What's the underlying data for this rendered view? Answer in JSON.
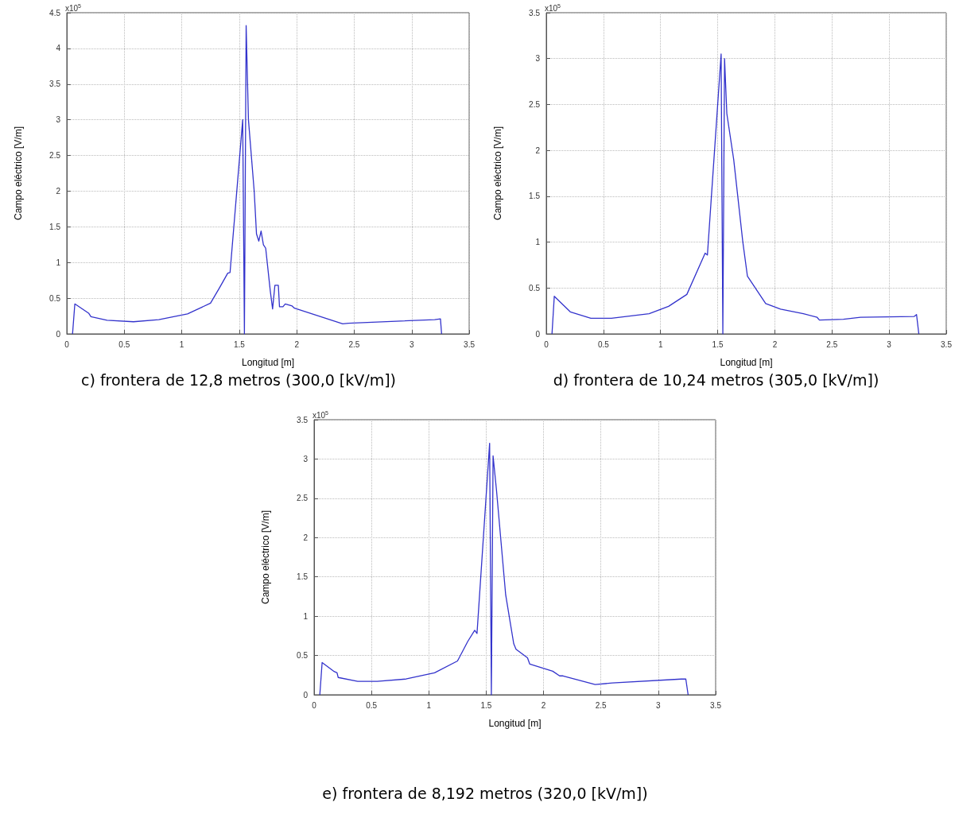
{
  "chart_data": [
    {
      "type": "line",
      "title": "c) frontera de 12,8 metros (300,0 [kV/m])",
      "xlabel": "Longitud [m]",
      "ylabel": "Campo eléctrico [V/m]",
      "annotations": [
        "x10$^{5}$"
      ],
      "grid": true,
      "marker": "none",
      "line_style": "solid",
      "xlim": [
        0,
        3.5
      ],
      "xticks": [
        0,
        0.5,
        1,
        1.5,
        2,
        2.5,
        3,
        3.5
      ],
      "ylim": [
        0,
        4.5
      ],
      "yticks": [
        0,
        0.5,
        1,
        1.5,
        2,
        2.5,
        3,
        3.5,
        4,
        4.5
      ],
      "series": [
        {
          "color": "#3333cc",
          "x": [
            0.05,
            0.07,
            0.19,
            0.21,
            0.35,
            0.58,
            0.8,
            1.05,
            1.25,
            1.33,
            1.4,
            1.42,
            1.53,
            1.545,
            1.56,
            1.58,
            1.63,
            1.65,
            1.67,
            1.69,
            1.71,
            1.73,
            1.77,
            1.79,
            1.81,
            1.84,
            1.85,
            1.88,
            1.9,
            1.96,
            1.98,
            2.4,
            2.45,
            3.2,
            3.25,
            3.26
          ],
          "values": [
            0,
            0.42,
            0.29,
            0.24,
            0.19,
            0.17,
            0.2,
            0.28,
            0.43,
            0.65,
            0.85,
            0.86,
            3.0,
            0,
            4.32,
            3.0,
            2.0,
            1.4,
            1.3,
            1.44,
            1.25,
            1.2,
            0.6,
            0.35,
            0.68,
            0.68,
            0.38,
            0.38,
            0.42,
            0.39,
            0.36,
            0.14,
            0.15,
            0.2,
            0.21,
            0
          ]
        }
      ]
    },
    {
      "type": "line",
      "title": "d) frontera de 10,24 metros (305,0 [kV/m])",
      "xlabel": "Longitud [m]",
      "ylabel": "Campo eléctrico [V/m]",
      "annotations": [
        "x10$^{5}$"
      ],
      "grid": true,
      "marker": "none",
      "line_style": "solid",
      "xlim": [
        0,
        3.5
      ],
      "xticks": [
        0,
        0.5,
        1,
        1.5,
        2,
        2.5,
        3,
        3.5
      ],
      "ylim": [
        0,
        3.5
      ],
      "yticks": [
        0,
        0.5,
        1,
        1.5,
        2,
        2.5,
        3,
        3.5
      ],
      "series": [
        {
          "color": "#3333cc",
          "x": [
            0.05,
            0.07,
            0.21,
            0.39,
            0.57,
            0.9,
            1.07,
            1.23,
            1.39,
            1.41,
            1.53,
            1.545,
            1.56,
            1.58,
            1.64,
            1.72,
            1.76,
            1.92,
            2.05,
            2.25,
            2.37,
            2.39,
            2.6,
            2.75,
            3.22,
            3.24,
            3.26
          ],
          "values": [
            0,
            0.41,
            0.24,
            0.17,
            0.17,
            0.22,
            0.3,
            0.43,
            0.88,
            0.86,
            3.05,
            0,
            3.0,
            2.4,
            1.9,
            1.0,
            0.63,
            0.33,
            0.27,
            0.22,
            0.18,
            0.15,
            0.16,
            0.18,
            0.19,
            0.21,
            0
          ]
        }
      ]
    },
    {
      "type": "line",
      "title": "e) frontera de 8,192 metros (320,0 [kV/m])",
      "xlabel": "Longitud [m]",
      "ylabel": "Campo eléctrico [V/m]",
      "annotations": [
        "x10$^{5}$"
      ],
      "grid": true,
      "marker": "none",
      "line_style": "solid",
      "xlim": [
        0,
        3.5
      ],
      "xticks": [
        0,
        0.5,
        1,
        1.5,
        2,
        2.5,
        3,
        3.5
      ],
      "ylim": [
        0,
        3.5
      ],
      "yticks": [
        0,
        0.5,
        1,
        1.5,
        2,
        2.5,
        3,
        3.5
      ],
      "series": [
        {
          "color": "#3333cc",
          "x": [
            0.05,
            0.07,
            0.17,
            0.2,
            0.21,
            0.38,
            0.55,
            0.8,
            1.05,
            1.25,
            1.34,
            1.4,
            1.42,
            1.53,
            1.545,
            1.56,
            1.59,
            1.67,
            1.74,
            1.76,
            1.86,
            1.88,
            2.08,
            2.14,
            2.17,
            2.45,
            2.6,
            3.2,
            3.24,
            3.26
          ],
          "values": [
            0,
            0.41,
            0.3,
            0.28,
            0.22,
            0.17,
            0.17,
            0.2,
            0.28,
            0.43,
            0.68,
            0.82,
            0.78,
            3.2,
            0,
            3.04,
            2.6,
            1.27,
            0.65,
            0.58,
            0.47,
            0.39,
            0.3,
            0.24,
            0.24,
            0.13,
            0.15,
            0.2,
            0.2,
            0
          ]
        }
      ]
    }
  ]
}
